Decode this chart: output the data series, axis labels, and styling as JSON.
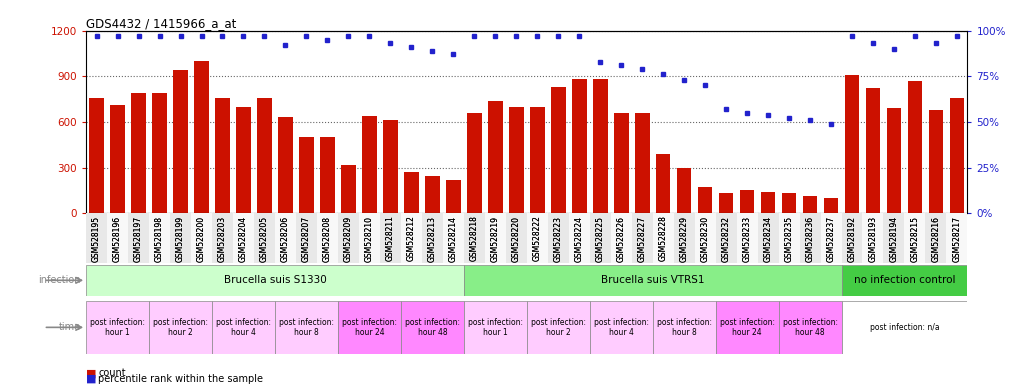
{
  "title": "GDS4432 / 1415966_a_at",
  "samples": [
    "GSM528195",
    "GSM528196",
    "GSM528197",
    "GSM528198",
    "GSM528199",
    "GSM528200",
    "GSM528203",
    "GSM528204",
    "GSM528205",
    "GSM528206",
    "GSM528207",
    "GSM528208",
    "GSM528209",
    "GSM528210",
    "GSM528211",
    "GSM528212",
    "GSM528213",
    "GSM528214",
    "GSM528218",
    "GSM528219",
    "GSM528220",
    "GSM528222",
    "GSM528223",
    "GSM528224",
    "GSM528225",
    "GSM528226",
    "GSM528227",
    "GSM528228",
    "GSM528229",
    "GSM528230",
    "GSM528232",
    "GSM528233",
    "GSM528234",
    "GSM528235",
    "GSM528236",
    "GSM528237",
    "GSM528192",
    "GSM528193",
    "GSM528194",
    "GSM528215",
    "GSM528216",
    "GSM528217"
  ],
  "counts": [
    755,
    710,
    790,
    790,
    940,
    1000,
    760,
    695,
    760,
    630,
    500,
    500,
    315,
    640,
    615,
    270,
    245,
    220,
    660,
    740,
    700,
    700,
    830,
    880,
    880,
    660,
    660,
    390,
    295,
    170,
    130,
    155,
    140,
    130,
    110,
    100,
    910,
    820,
    690,
    870,
    680,
    755
  ],
  "percentiles": [
    97,
    97,
    97,
    97,
    97,
    97,
    97,
    97,
    97,
    92,
    97,
    95,
    97,
    97,
    93,
    91,
    89,
    87,
    97,
    97,
    97,
    97,
    97,
    97,
    83,
    81,
    79,
    76,
    73,
    70,
    57,
    55,
    54,
    52,
    51,
    49,
    97,
    93,
    90,
    97,
    93,
    97
  ],
  "bar_color": "#cc1100",
  "dot_color": "#2222cc",
  "ylim_left": [
    0,
    1200
  ],
  "ylim_right": [
    0,
    100
  ],
  "yticks_left": [
    0,
    300,
    600,
    900,
    1200
  ],
  "yticks_right": [
    0,
    25,
    50,
    75,
    100
  ],
  "infection_groups": [
    {
      "label": "Brucella suis S1330",
      "start": 0,
      "end": 18,
      "color": "#ccffcc"
    },
    {
      "label": "Brucella suis VTRS1",
      "start": 18,
      "end": 36,
      "color": "#88ee88"
    },
    {
      "label": "no infection control",
      "start": 36,
      "end": 42,
      "color": "#44cc44"
    }
  ],
  "time_groups": [
    {
      "label": "post infection:\nhour 1",
      "start": 0,
      "end": 3,
      "color": "#ffccff"
    },
    {
      "label": "post infection:\nhour 2",
      "start": 3,
      "end": 6,
      "color": "#ffccff"
    },
    {
      "label": "post infection:\nhour 4",
      "start": 6,
      "end": 9,
      "color": "#ffccff"
    },
    {
      "label": "post infection:\nhour 8",
      "start": 9,
      "end": 12,
      "color": "#ffccff"
    },
    {
      "label": "post infection:\nhour 24",
      "start": 12,
      "end": 15,
      "color": "#ff88ff"
    },
    {
      "label": "post infection:\nhour 48",
      "start": 15,
      "end": 18,
      "color": "#ff88ff"
    },
    {
      "label": "post infection:\nhour 1",
      "start": 18,
      "end": 21,
      "color": "#ffccff"
    },
    {
      "label": "post infection:\nhour 2",
      "start": 21,
      "end": 24,
      "color": "#ffccff"
    },
    {
      "label": "post infection:\nhour 4",
      "start": 24,
      "end": 27,
      "color": "#ffccff"
    },
    {
      "label": "post infection:\nhour 8",
      "start": 27,
      "end": 30,
      "color": "#ffccff"
    },
    {
      "label": "post infection:\nhour 24",
      "start": 30,
      "end": 33,
      "color": "#ff88ff"
    },
    {
      "label": "post infection:\nhour 48",
      "start": 33,
      "end": 36,
      "color": "#ff88ff"
    },
    {
      "label": "post infection: n/a",
      "start": 36,
      "end": 42,
      "color": "#ffffff"
    }
  ],
  "bg_color": "#f0f0f0",
  "left_label_color": "#888888"
}
